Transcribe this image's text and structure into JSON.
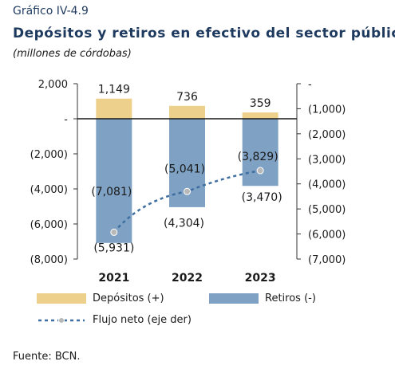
{
  "header": {
    "label": "Gráfico IV-4.9",
    "title": "Depósitos y retiros en efectivo del sector público",
    "subtitle": "(millones de córdobas)"
  },
  "legend": {
    "depositos": "Depósitos (+)",
    "retiros": "Retiros (-)",
    "flujo": "Flujo neto (eje der)"
  },
  "source": "Fuente: BCN.",
  "colors": {
    "depositos": "#ecd08c",
    "retiros": "#7fa2c4",
    "flujo": "#3f6fa1",
    "marker": "#b8b8b8"
  },
  "chart_data": {
    "type": "bar",
    "categories": [
      "2021",
      "2022",
      "2023"
    ],
    "series": [
      {
        "name": "Depósitos (+)",
        "values": [
          1149,
          736,
          359
        ],
        "labels": [
          "1,149",
          "736",
          "359"
        ]
      },
      {
        "name": "Retiros (-)",
        "values": [
          -7081,
          -5041,
          -3829
        ],
        "labels": [
          "(7,081)",
          "(5,041)",
          "(3,829)"
        ]
      },
      {
        "name": "Flujo neto (eje der)",
        "type": "line",
        "axis": "right",
        "values": [
          -5931,
          -4304,
          -3470
        ],
        "labels": [
          "(5,931)",
          "(4,304)",
          "(3,470)"
        ]
      }
    ],
    "left_axis": {
      "ylim": [
        -8000,
        2000
      ],
      "ticks": [
        2000,
        0,
        -2000,
        -4000,
        -6000,
        -8000
      ],
      "tick_labels": [
        "2,000",
        "-",
        "(2,000)",
        "(4,000)",
        "(6,000)",
        "(8,000)"
      ]
    },
    "right_axis": {
      "ylim": [
        -7000,
        0
      ],
      "ticks": [
        0,
        -1000,
        -2000,
        -3000,
        -4000,
        -5000,
        -6000,
        -7000
      ],
      "tick_labels": [
        "-",
        "(1,000)",
        "(2,000)",
        "(3,000)",
        "(4,000)",
        "(5,000)",
        "(6,000)",
        "(7,000)"
      ]
    }
  }
}
